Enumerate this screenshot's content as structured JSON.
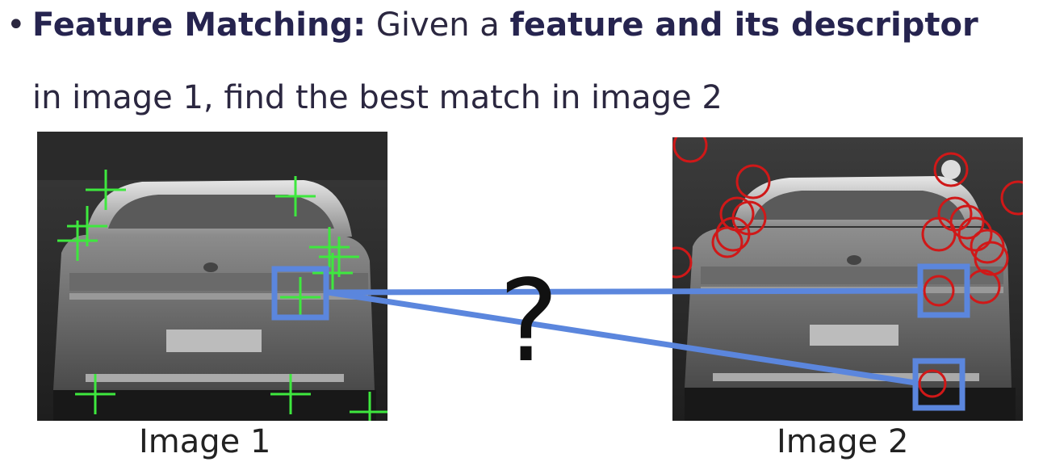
{
  "slide": {
    "bullet": "•",
    "title_bold": "Feature Matching:",
    "title_normal": " Given a ",
    "title_bold2": "feature and its descriptor",
    "line2": "in image 1, find the best match in image 2"
  },
  "image1": {
    "caption": "Image 1"
  },
  "image2": {
    "caption": "Image 2"
  },
  "question_mark": "?",
  "colors": {
    "feature_cross": "#3ee83e",
    "feature_circle": "#d01818",
    "match_box": "#5b86dd",
    "match_line": "#5b86dd"
  }
}
